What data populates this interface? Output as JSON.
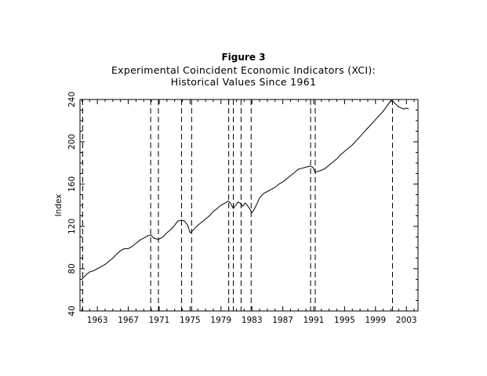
{
  "figure_label": "Figure 3",
  "title_line1": "Experimental Coincident Economic Indicators (XCI):",
  "title_line2": "Historical Values Since 1961",
  "chart_data": {
    "type": "line",
    "title": "Experimental Coincident Economic Indicators (XCI): Historical Values Since 1961",
    "xlabel": "",
    "ylabel": "Index",
    "xlim": [
      1960.75,
      2004.5
    ],
    "ylim": [
      40,
      240
    ],
    "xticks": [
      1963,
      1967,
      1971,
      1975,
      1979,
      1983,
      1987,
      1991,
      1995,
      1999,
      2003
    ],
    "yticks": [
      40,
      80,
      120,
      160,
      200,
      240
    ],
    "grid": false,
    "series": [
      {
        "name": "",
        "x": [
          1961.0,
          1961.5,
          1962.0,
          1962.5,
          1963.0,
          1963.5,
          1964.0,
          1964.5,
          1965.0,
          1965.5,
          1966.0,
          1966.5,
          1967.0,
          1967.5,
          1968.0,
          1968.5,
          1969.0,
          1969.5,
          1969.9,
          1970.3,
          1970.7,
          1971.0,
          1971.5,
          1972.0,
          1972.5,
          1973.0,
          1973.4,
          1973.9,
          1974.3,
          1974.7,
          1975.0,
          1975.2,
          1975.6,
          1976.0,
          1976.5,
          1977.0,
          1977.5,
          1978.0,
          1978.5,
          1979.0,
          1979.5,
          1980.0,
          1980.3,
          1980.6,
          1980.9,
          1981.2,
          1981.5,
          1981.8,
          1982.1,
          1982.4,
          1982.7,
          1983.0,
          1983.3,
          1983.7,
          1984.0,
          1984.5,
          1985.0,
          1985.5,
          1986.0,
          1986.5,
          1987.0,
          1987.5,
          1988.0,
          1988.5,
          1989.0,
          1989.5,
          1990.0,
          1990.5,
          1990.9,
          1991.2,
          1991.5,
          1992.0,
          1992.5,
          1993.0,
          1993.5,
          1994.0,
          1994.5,
          1995.0,
          1995.5,
          1996.0,
          1996.5,
          1997.0,
          1997.5,
          1998.0,
          1998.5,
          1999.0,
          1999.5,
          2000.0,
          2000.5,
          2001.0,
          2001.3,
          2001.7,
          2002.0,
          2002.3,
          2002.7,
          2003.0,
          2003.3
        ],
        "y": [
          70,
          74,
          77,
          78,
          80,
          82,
          84,
          87,
          90,
          94,
          97,
          99,
          99,
          101,
          104,
          107,
          109,
          111,
          112,
          109,
          108,
          108,
          110,
          114,
          117,
          121,
          125,
          126,
          125,
          121,
          114,
          115,
          118,
          121,
          124,
          127,
          130,
          134,
          137,
          140,
          142,
          144,
          141,
          137,
          140,
          143,
          142,
          139,
          142,
          140,
          137,
          133,
          136,
          142,
          147,
          151,
          153,
          155,
          157,
          160,
          162,
          165,
          168,
          171,
          174,
          175,
          176,
          177,
          176,
          171,
          172,
          173,
          175,
          178,
          181,
          184,
          188,
          191,
          194,
          197,
          201,
          205,
          209,
          213,
          217,
          221,
          225,
          229,
          234,
          239,
          238,
          235,
          233,
          232,
          231,
          232,
          231
        ]
      }
    ],
    "reference_lines_x": [
      1961.1,
      1969.9,
      1970.9,
      1973.9,
      1975.2,
      1980.0,
      1980.6,
      1981.6,
      1982.9,
      1990.6,
      1991.2,
      2001.2
    ]
  }
}
